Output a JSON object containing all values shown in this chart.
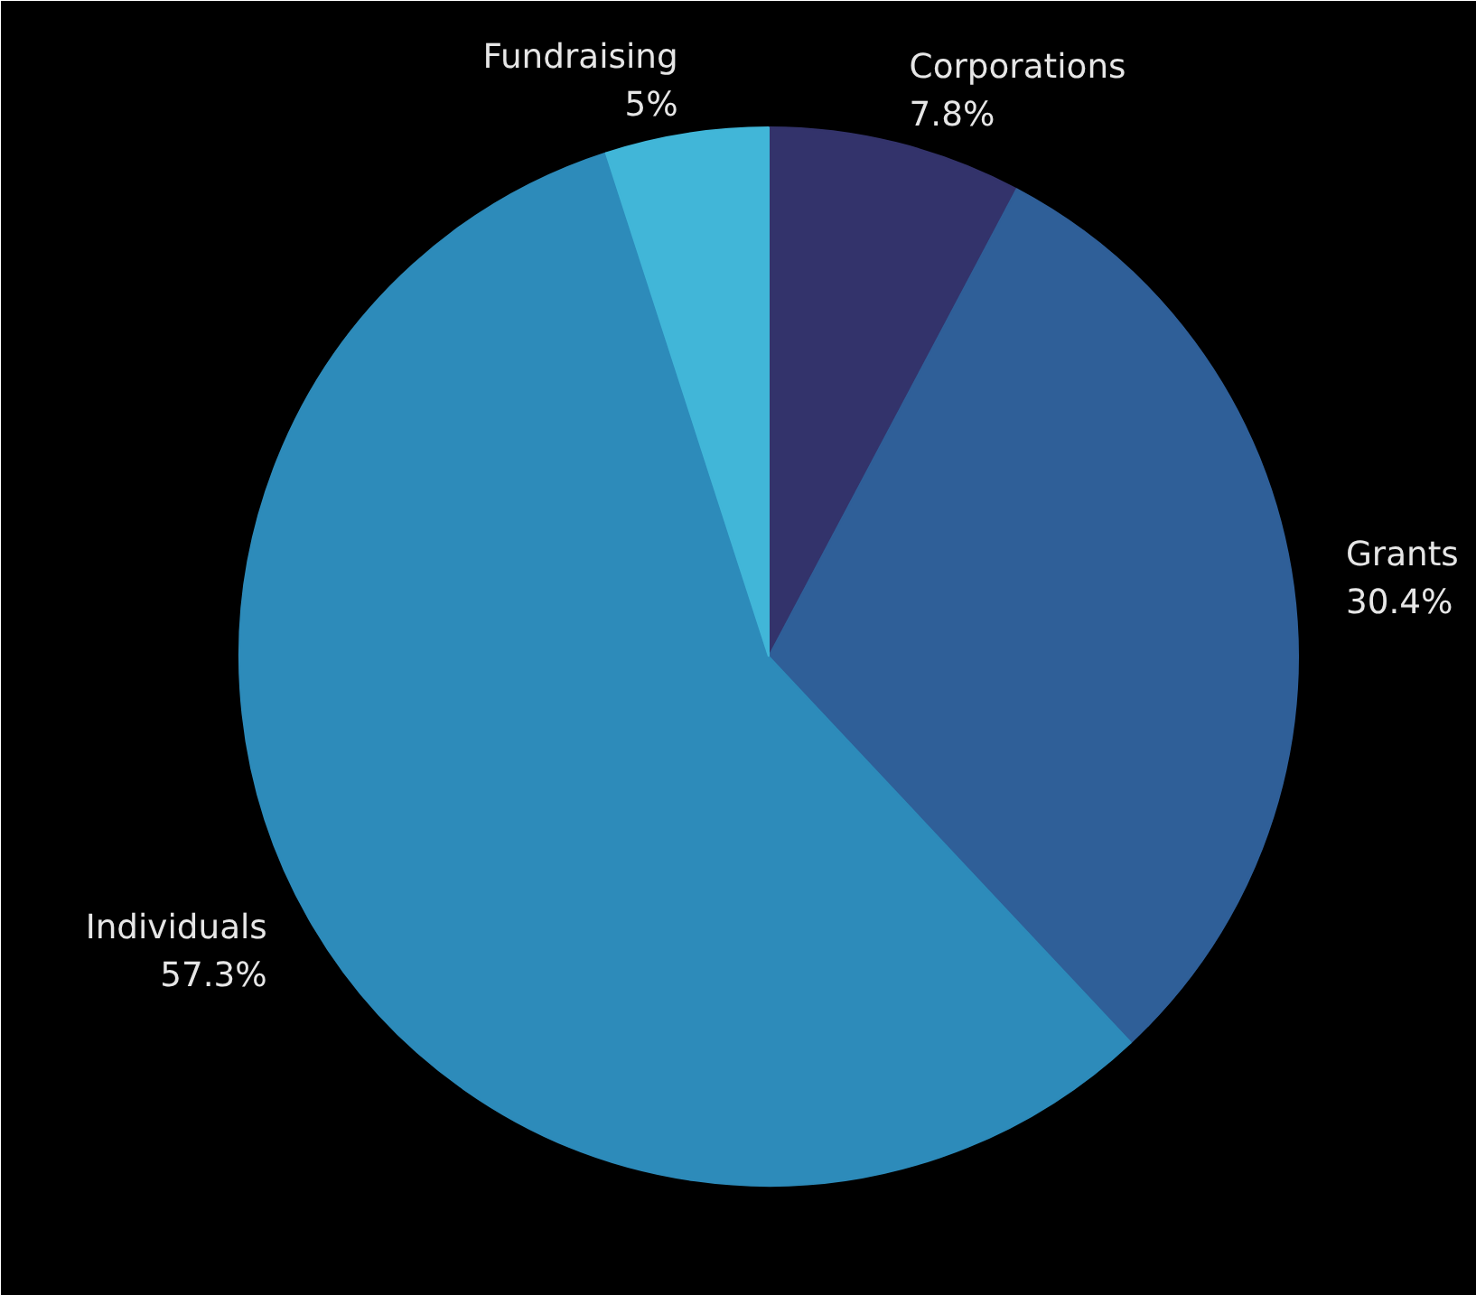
{
  "chart_data": {
    "type": "pie",
    "categories": [
      "Corporations",
      "Grants",
      "Individuals",
      "Fundraising"
    ],
    "values": [
      7.8,
      30.4,
      57.3,
      5
    ],
    "colors": [
      "#33336b",
      "#2f5f98",
      "#2d8bba",
      "#41b6d8"
    ],
    "value_labels": [
      "7.8%",
      "30.4%",
      "57.3%",
      "5%"
    ]
  }
}
